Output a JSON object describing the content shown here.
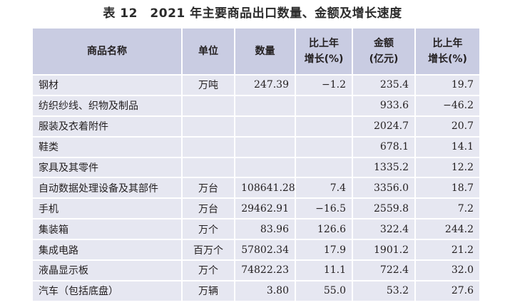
{
  "title": "表 12　2021 年主要商品出口数量、金额及增长速度",
  "headers": {
    "name": "商品名称",
    "unit": "单位",
    "quantity": "数量",
    "qty_growth_line1": "比上年",
    "qty_growth_line2": "增长(%)",
    "amount_line1": "金额",
    "amount_line2": "(亿元)",
    "amt_growth_line1": "比上年",
    "amt_growth_line2": "增长(%)"
  },
  "rows": [
    {
      "name": "钢材",
      "unit": "万吨",
      "quantity": "247.39",
      "qty_growth": "−1.2",
      "amount": "235.4",
      "amt_growth": "19.7"
    },
    {
      "name": "纺织纱线、织物及制品",
      "unit": "",
      "quantity": "",
      "qty_growth": "",
      "amount": "933.6",
      "amt_growth": "−46.2"
    },
    {
      "name": "服装及衣着附件",
      "unit": "",
      "quantity": "",
      "qty_growth": "",
      "amount": "2024.7",
      "amt_growth": "20.7"
    },
    {
      "name": "鞋类",
      "unit": "",
      "quantity": "",
      "qty_growth": "",
      "amount": "678.1",
      "amt_growth": "14.1"
    },
    {
      "name": "家具及其零件",
      "unit": "",
      "quantity": "",
      "qty_growth": "",
      "amount": "1335.2",
      "amt_growth": "12.2"
    },
    {
      "name": "自动数据处理设备及其部件",
      "unit": "万台",
      "quantity": "108641.28",
      "qty_growth": "7.4",
      "amount": "3356.0",
      "amt_growth": "18.7"
    },
    {
      "name": "手机",
      "unit": "万台",
      "quantity": "29462.91",
      "qty_growth": "−16.5",
      "amount": "2559.8",
      "amt_growth": "7.2"
    },
    {
      "name": "集装箱",
      "unit": "万个",
      "quantity": "83.96",
      "qty_growth": "126.6",
      "amount": "322.4",
      "amt_growth": "244.2"
    },
    {
      "name": "集成电路",
      "unit": "百万个",
      "quantity": "57802.34",
      "qty_growth": "17.9",
      "amount": "1901.2",
      "amt_growth": "21.2"
    },
    {
      "name": "液晶显示板",
      "unit": "万个",
      "quantity": "74822.23",
      "qty_growth": "11.1",
      "amount": "722.4",
      "amt_growth": "32.0"
    },
    {
      "name": "汽车（包括底盘）",
      "unit": "万辆",
      "quantity": "3.80",
      "qty_growth": "55.0",
      "amount": "53.2",
      "amt_growth": "27.6"
    }
  ],
  "colors": {
    "header_bg": "#c9cce2",
    "row_bg": "#e6e7f1",
    "grid_line": "#ffffff"
  }
}
